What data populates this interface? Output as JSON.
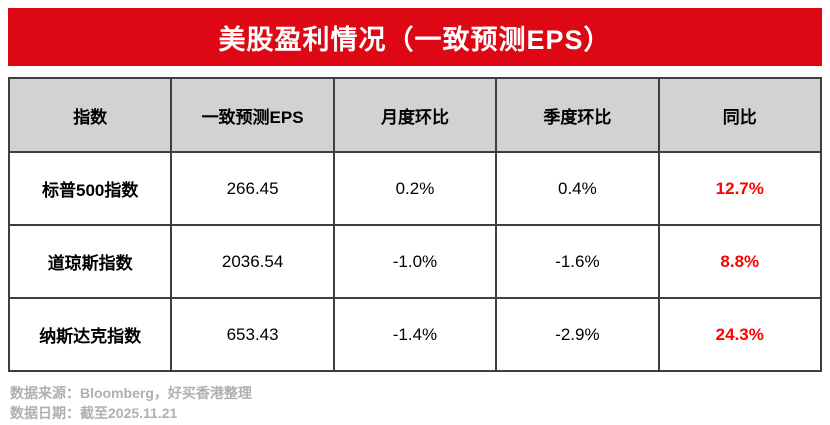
{
  "title": "美股盈利情况（一致预测EPS）",
  "colors": {
    "banner_red": "#DD0814",
    "highlight_red": "#FF0000",
    "header_gray": "#D2D2D2",
    "footer_gray": "#B0B0B0",
    "border_dark": "#3F3F3F"
  },
  "table": {
    "columns": [
      "指数",
      "一致预测EPS",
      "月度环比",
      "季度环比",
      "同比"
    ],
    "rows": [
      {
        "index": "标普500指数",
        "eps": "266.45",
        "mom": "0.2%",
        "qoq": "0.4%",
        "yoy": "12.7%"
      },
      {
        "index": "道琼斯指数",
        "eps": "2036.54",
        "mom": "-1.0%",
        "qoq": "-1.6%",
        "yoy": "8.8%"
      },
      {
        "index": "纳斯达克指数",
        "eps": "653.43",
        "mom": "-1.4%",
        "qoq": "-2.9%",
        "yoy": "24.3%"
      }
    ]
  },
  "footer": {
    "source": "数据来源：Bloomberg，好买香港整理",
    "date": "数据日期：截至2025.11.21"
  },
  "chart_data": {
    "type": "table",
    "title": "美股盈利情况（一致预测EPS）",
    "columns": [
      "指数",
      "一致预测EPS",
      "月度环比",
      "季度环比",
      "同比"
    ],
    "rows": [
      [
        "标普500指数",
        266.45,
        "0.2%",
        "0.4%",
        "12.7%"
      ],
      [
        "道琼斯指数",
        2036.54,
        "-1.0%",
        "-1.6%",
        "8.8%"
      ],
      [
        "纳斯达克指数",
        653.43,
        "-1.4%",
        "-2.9%",
        "24.3%"
      ]
    ],
    "notes": [
      "数据来源：Bloomberg，好买香港整理",
      "数据日期：截至2025.11.21"
    ],
    "highlight": "同比 column rendered bold red"
  }
}
